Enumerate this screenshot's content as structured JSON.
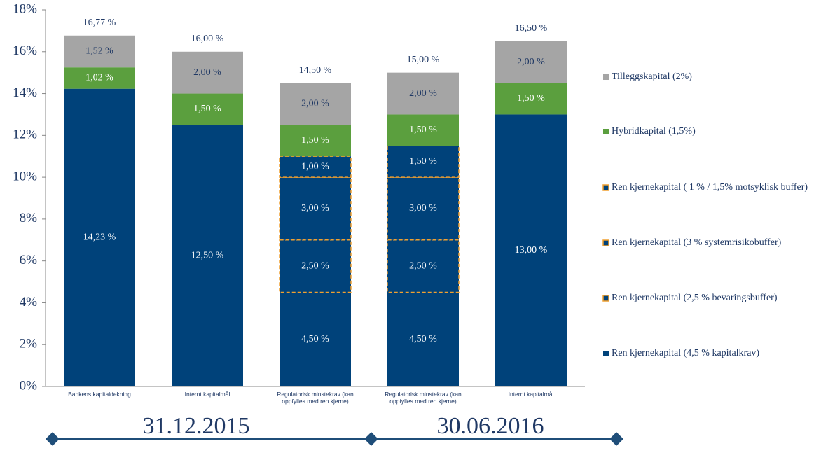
{
  "chart_data": {
    "type": "stacked-bar",
    "categories": [
      "Bankens kapitaldekning",
      "Internt kapitalmål",
      "Regulatorisk minstekrav (kan oppfylles med ren kjerne)",
      "Regulatorisk minstekrav (kan oppfylles med ren kjerne)",
      "Internt kapitalmål"
    ],
    "series": [
      {
        "name": "Ren kjernekapital (4,5 % kapitalkrav)",
        "color": "#00427a",
        "values": [
          14.23,
          12.5,
          4.5,
          4.5,
          13.0
        ],
        "value_labels": [
          "14,23 %",
          "12,50 %",
          "4,50 %",
          "4,50 %",
          "13,00 %"
        ]
      },
      {
        "name": "Ren kjernekapital (2,5 % bevaringsbuffer)",
        "color": "#00427a",
        "border_color": "#f0a030",
        "dashed": true,
        "values": [
          null,
          null,
          2.5,
          2.5,
          null
        ],
        "value_labels": [
          null,
          null,
          "2,50 %",
          "2,50 %",
          null
        ]
      },
      {
        "name": "Ren kjernekapital (3 % systemrisikobuffer)",
        "color": "#00427a",
        "border_color": "#f0a030",
        "dashed": true,
        "values": [
          null,
          null,
          3.0,
          3.0,
          null
        ],
        "value_labels": [
          null,
          null,
          "3,00 %",
          "3,00 %",
          null
        ]
      },
      {
        "name": "Ren kjernekapital ( 1 % / 1,5% motsyklisk buffer)",
        "color": "#00427a",
        "border_color": "#f0a030",
        "dashed": true,
        "values": [
          null,
          null,
          1.0,
          1.5,
          null
        ],
        "value_labels": [
          null,
          null,
          "1,00 %",
          "1,50 %",
          null
        ]
      },
      {
        "name": "Hybridkapital (1,5%)",
        "color": "#5b9f3e",
        "values": [
          1.02,
          1.5,
          1.5,
          1.5,
          1.5
        ],
        "value_labels": [
          "1,02 %",
          "1,50 %",
          "1,50 %",
          "1,50 %",
          "1,50 %"
        ]
      },
      {
        "name": "Tilleggskapital (2%)",
        "color": "#a5a5a5",
        "label_color": "#1f3864",
        "values": [
          1.52,
          2.0,
          2.0,
          2.0,
          2.0
        ],
        "value_labels": [
          "1,52 %",
          "2,00 %",
          "2,00 %",
          "2,00 %",
          "2,00 %"
        ]
      }
    ],
    "totals": [
      16.77,
      16.0,
      14.5,
      15.0,
      16.5
    ],
    "total_labels": [
      "16,77 %",
      "16,00 %",
      "14,50 %",
      "15,00 %",
      "16,50 %"
    ],
    "ylim": [
      0,
      18
    ],
    "yticks": [
      {
        "value": 0,
        "label": "0%"
      },
      {
        "value": 2,
        "label": "2%"
      },
      {
        "value": 4,
        "label": "4%"
      },
      {
        "value": 6,
        "label": "6%"
      },
      {
        "value": 8,
        "label": "8%"
      },
      {
        "value": 10,
        "label": "10%"
      },
      {
        "value": 12,
        "label": "12%"
      },
      {
        "value": 14,
        "label": "14%"
      },
      {
        "value": 16,
        "label": "16%"
      },
      {
        "value": 18,
        "label": "18%"
      }
    ],
    "period_labels": [
      "31.12.2015",
      "30.06.2016"
    ],
    "grid": false,
    "legend": "right"
  }
}
